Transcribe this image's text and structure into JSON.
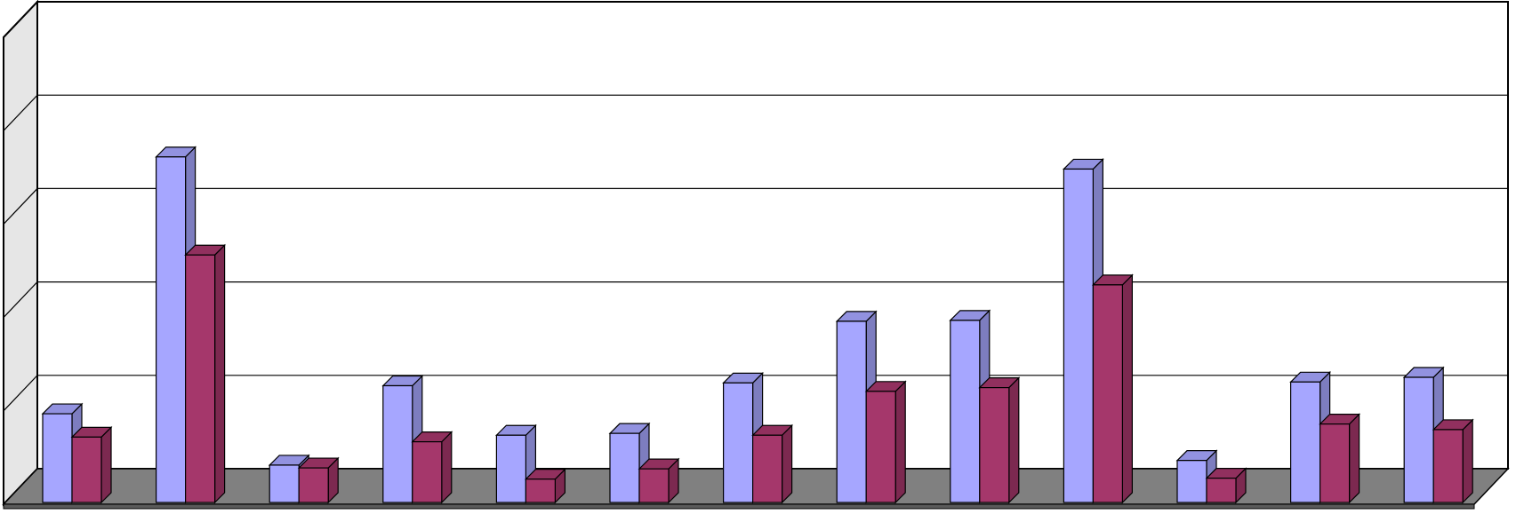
{
  "chart_data": {
    "type": "bar",
    "grid": true,
    "legend": "none",
    "categories": [
      "",
      "",
      "",
      "",
      "",
      "",
      "",
      "",
      "",
      "",
      "",
      "",
      ""
    ],
    "series": [
      {
        "color": "#a6a6ff",
        "values": [
          0.95,
          3.7,
          0.4,
          1.25,
          0.72,
          0.74,
          1.28,
          1.94,
          1.95,
          3.57,
          0.45,
          1.29,
          1.34
        ]
      },
      {
        "color": "#a5376b",
        "values": [
          0.7,
          2.65,
          0.37,
          0.65,
          0.25,
          0.36,
          0.72,
          1.19,
          1.23,
          2.33,
          0.26,
          0.84,
          0.78
        ]
      }
    ],
    "ylim": [
      0,
      5
    ],
    "colors": {
      "floor": "#808080",
      "wall": "#e6e6e6",
      "gridline": "#000000"
    }
  }
}
